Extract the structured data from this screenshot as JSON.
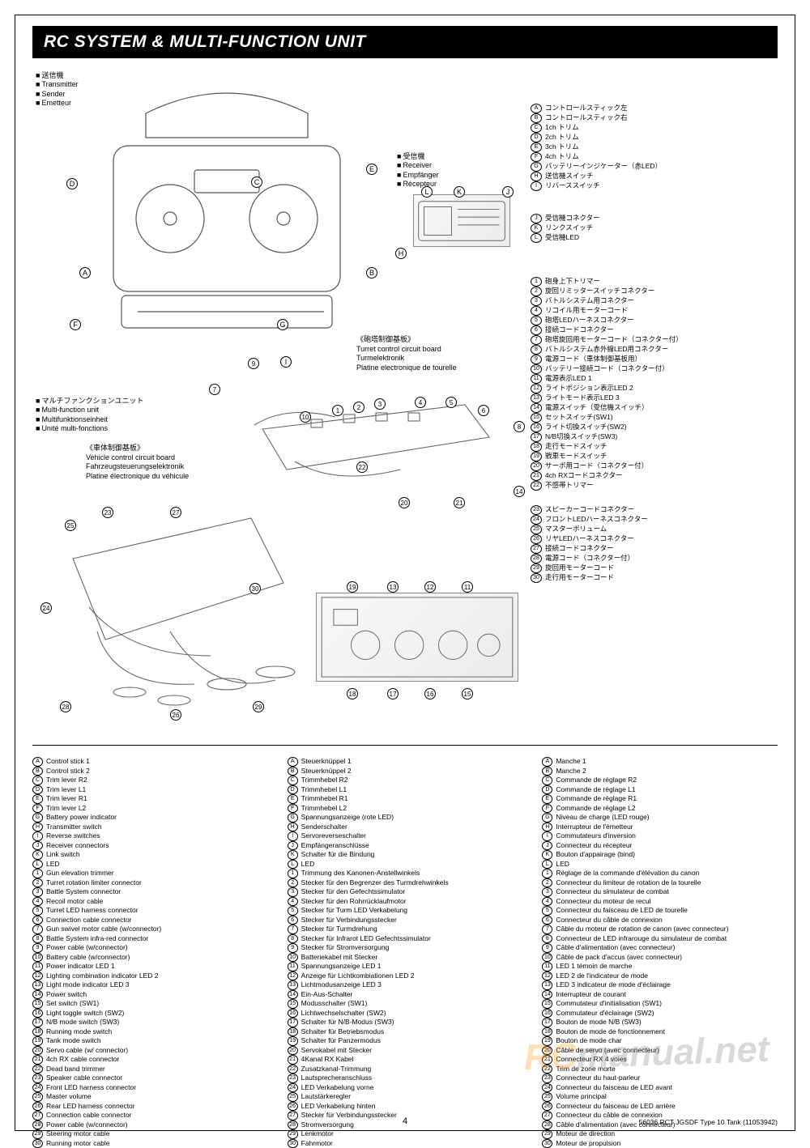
{
  "title": "RC SYSTEM & MULTI-FUNCTION UNIT",
  "page_number": "4",
  "footer_code": "56036   RCT JGSDF Type 10 Tank (11053942)",
  "watermark_a": "RC",
  "watermark_b": "manual.net",
  "sections": {
    "transmitter": {
      "jp": "送信機",
      "en": "Transmitter",
      "de": "Sender",
      "fr": "Emetteur"
    },
    "receiver": {
      "jp": "受信機",
      "en": "Receiver",
      "de": "Empfänger",
      "fr": "Récepteur"
    },
    "mfu": {
      "jp": "マルチファンクションユニット",
      "en": "Multi-function unit",
      "de": "Multifunktionseinheit",
      "fr": "Unité multi-fonctions"
    },
    "turret_board": {
      "jp": "《砲塔制御基板》",
      "en": "Turret control circuit board",
      "de": "Turmelektronik",
      "fr": "Platine electronique de tourelle"
    },
    "vehicle_board": {
      "jp": "《車体制御基板》",
      "en": "Vehicle control circuit board",
      "de": "Fahrzeugsteuerungselektronik",
      "fr": "Platine électronique du véhicule"
    }
  },
  "letters_visible": [
    "A",
    "B",
    "C",
    "D",
    "E",
    "F",
    "G",
    "H",
    "I",
    "J",
    "K",
    "L"
  ],
  "numbers_visible": 30,
  "jp_letters": {
    "A": "コントロールスティック左",
    "B": "コントロールスティック右",
    "C": "1ch トリム",
    "D": "2ch トリム",
    "E": "3ch トリム",
    "F": "4ch トリム",
    "G": "バッテリーインジケーター（赤LED）",
    "H": "送信機スイッチ",
    "I": "リバーススイッチ",
    "J": "受信機コネクター",
    "K": "リンクスイッチ",
    "L": "受信機LED"
  },
  "jp_numbers": [
    "砲身上下トリマー",
    "旋回リミッタースイッチコネクター",
    "バトルシステム用コネクター",
    "リコイル用モーターコード",
    "砲塔LEDハーネスコネクター",
    "接続コードコネクター",
    "砲塔旋回用モーターコード（コネクター付）",
    "バトルシステム赤外線LED用コネクター",
    "電源コード（車体制御基板用）",
    "バッテリー接続コード（コネクター付）",
    "電源表示LED 1",
    "ライトポジション表示LED 2",
    "ライトモード表示LED 3",
    "電源スイッチ（受信機スイッチ）",
    "セットスイッチ(SW1)",
    "ライト切換スイッチ(SW2)",
    "N/B切換スイッチ(SW3)",
    "走行モードスイッチ",
    "戦車モードスイッチ",
    "サーボ用コード（コネクター付）",
    "4ch RXコードコネクター",
    "不感帯トリマー",
    "スピーカーコードコネクター",
    "フロントLEDハーネスコネクター",
    "マスターボリューム",
    "リヤLEDハーネスコネクター",
    "接続コードコネクター",
    "電源コード（コネクター付）",
    "旋回用モーターコード",
    "走行用モーターコード"
  ],
  "en_letters": [
    "Control stick 1",
    "Control stick 2",
    "Trim lever R2",
    "Trim lever L1",
    "Trim lever R1",
    "Trim lever L2",
    "Battery power indicator",
    "Transmitter switch",
    "Reverse switches",
    "Receiver connectors",
    "Link switch",
    "LED"
  ],
  "en_numbers": [
    "Gun elevation trimmer",
    "Turret rotation limiter connector",
    "Battle System connector",
    "Recoil motor cable",
    "Turret LED harness connector",
    "Connection cable connector",
    "Gun swivel motor cable (w/connector)",
    "Battle System infra-red connector",
    "Power cable (w/connector)",
    "Battery cable (w/connector)",
    "Power indicator LED 1",
    "Lighting combination indicator LED 2",
    "Light mode indicator LED 3",
    "Power switch",
    "Set switch (SW1)",
    "Light toggle switch (SW2)",
    "N/B mode switch (SW3)",
    "Running mode switch",
    "Tank mode switch",
    "Servo cable (w/ connector)",
    "4ch RX cable connector",
    "Dead band trimmer",
    "Speaker cable connector",
    "Front LED harness connector",
    "Master volume",
    "Rear LED harness connector",
    "Connection cable connector",
    "Power cable (w/connector)",
    "Steering motor cable",
    "Running motor cable"
  ],
  "de_letters": [
    "Steuerknüppel 1",
    "Steuerknüppel 2",
    "Trimmhebel R2",
    "Trimmhebel L1",
    "Trimmhebel R1",
    "Trimmhebel L2",
    "Spannungsanzeige (rote LED)",
    "Senderschalter",
    "Servoreverseschalter",
    "Empfängeranschlüsse",
    "Schalter für die Bindung",
    "LED"
  ],
  "de_numbers": [
    "Trimmung des Kanonen-Anstellwinkels",
    "Stecker für den Begrenzer des Turmdrehwinkels",
    "Stecker für den Gefechtssimulator",
    "Stecker für den Rohrrücklaufmotor",
    "Stecker für Turm LED Verkabelung",
    "Stecker für Verbindungsstecker",
    "Stecker für Turmdrehung",
    "Stecker für Infrarot LED Gefechtssimulator",
    "Stecker für Stromversorgung",
    "Batteriekabel mit Stecker",
    "Spannungsanzeige LED 1",
    "Anzeige für Lichtkombiationen LED 2",
    "Lichtmodusanzeige LED 3",
    "Ein-Aus-Schalter",
    "Modusschalter (SW1)",
    "Lichtwechselschalter (SW2)",
    "Schalter für N/B-Modus (SW3)",
    "Schalter für Betriebsmodus",
    "Schalter für Panzermodus",
    "Servokabel mit Stecker",
    "4Kanal RX Kabel",
    "Zusatzkanal-Trimmung",
    "Lautsprecheranschluss",
    "LED Verkabelung vorne",
    "Lautstärkeregler",
    "LED Verkabelung hinten",
    "Stecker für Verbindungsstecker",
    "Stromversorgung",
    "Lenkmotor",
    "Fahrmotor"
  ],
  "fr_letters": [
    "Manche 1",
    "Manche 2",
    "Commande de réglage R2",
    "Commande de réglage L1",
    "Commande de réglage R1",
    "Commande de réglage L2",
    "Niveau de charge (LED rouge)",
    "Interrupteur de l'émetteur",
    "Commutateurs d'inversion",
    "Connecteur du récepteur",
    "Bouton d'appairage (bind)",
    "LED"
  ],
  "fr_numbers": [
    "Réglage de la commande d'élévation du canon",
    "Connecteur du limiteur de rotation de la tourelle",
    "Connecteur du simulateur de combat",
    "Connecteur du moteur de recul",
    "Connecteur du faisceau de LED de tourelle",
    "Connecteur du câble de connexion",
    "Câble du moteur de rotation de canon (avec connecteur)",
    "Connecteur de LED infrarouge du simulateur de combat",
    "Câble d'alimentation (avec connecteur)",
    "Câble de pack d'accus (avec connecteur)",
    "LED 1 témoin de marche",
    "LED 2 de l'indicateur de mode",
    "LED 3 indicateur de mode d'éclairage",
    "Interrupteur de courant",
    "Commutateur d'initialisation (SW1)",
    "Commutateur d'éclairage (SW2)",
    "Bouton de mode N/B (SW3)",
    "Bouton de mode de fonctionnement",
    "Bouton de mode char",
    "Câble de servo (avec connecteur)",
    "Connecteur RX 4 voies",
    "Trim de zone morte",
    "Connecteur du haut-parleur",
    "Connecteur du faisceau de LED avant",
    "Volume principal",
    "Connecteur du faisceau de LED arrière",
    "Connecteur du câble de connexion",
    "Câble d'alimentation (avec connecteur)",
    "Moteur de direction",
    "Moteur de propulsion"
  ]
}
